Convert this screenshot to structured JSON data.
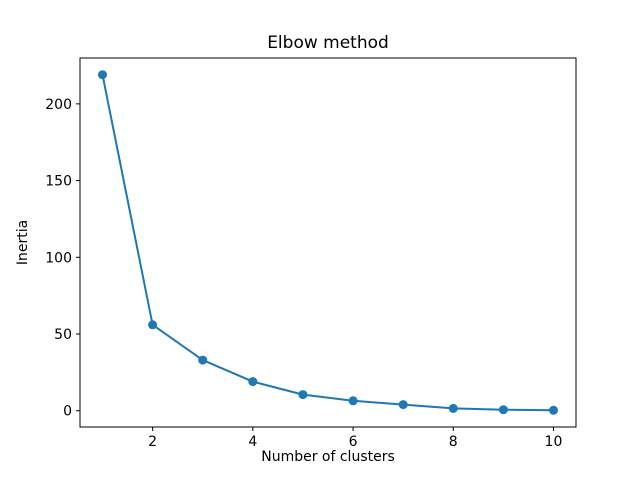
{
  "chart_data": {
    "type": "line",
    "title": "Elbow method",
    "xlabel": "Number of clusters",
    "ylabel": "Inertia",
    "x": [
      1,
      2,
      3,
      4,
      5,
      6,
      7,
      8,
      9,
      10
    ],
    "y": [
      219,
      56,
      33,
      19,
      10.5,
      6.5,
      4,
      1.5,
      0.7,
      0.3
    ],
    "xticks": [
      2,
      4,
      6,
      8,
      10
    ],
    "yticks": [
      0,
      50,
      100,
      150,
      200
    ],
    "xtick_labels": [
      "2",
      "4",
      "6",
      "8",
      "10"
    ],
    "ytick_labels": [
      "0",
      "50",
      "100",
      "150",
      "200"
    ],
    "xlim": [
      0.55,
      10.45
    ],
    "ylim": [
      -10.6,
      229.9
    ],
    "line_color": "#1f77b4",
    "marker": "circle",
    "grid": false,
    "legend_position": "none",
    "background_color": "#ffffff",
    "spine_color": "#000000"
  }
}
